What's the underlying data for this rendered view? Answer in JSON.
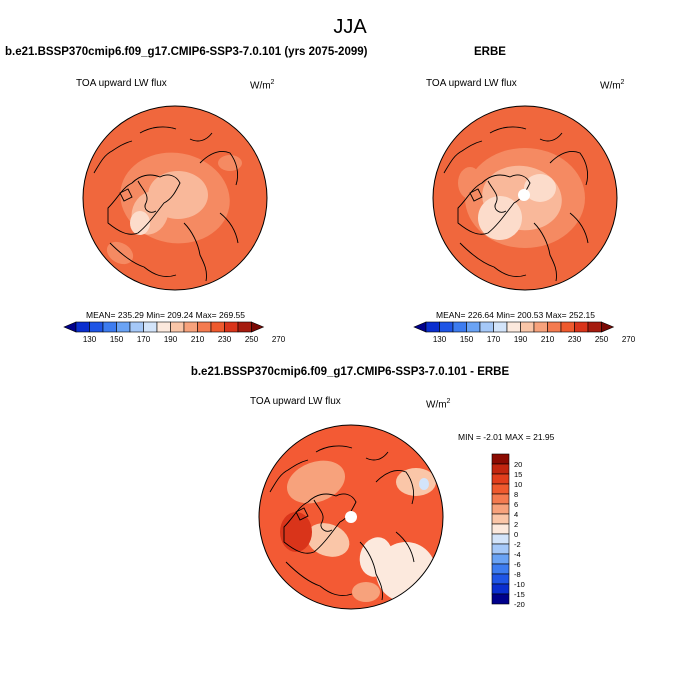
{
  "page_title": "JJA",
  "colors": {
    "abs_scale": [
      "#00008b",
      "#0a2ecf",
      "#1f55e6",
      "#3d7cf0",
      "#6aa3f5",
      "#a5c8f8",
      "#d3e4fa",
      "#fce9dd",
      "#fac6a8",
      "#f7a27c",
      "#f47b50",
      "#ef5a2e",
      "#d9341a",
      "#a51b0e",
      "#7a0a05"
    ],
    "diff_scale": [
      "#00008b",
      "#0a2ecf",
      "#1f55e6",
      "#3d7cf0",
      "#6aa3f5",
      "#a5c8f8",
      "#d3e4fa",
      "#fce9dd",
      "#fac6a8",
      "#f7a27c",
      "#f47b50",
      "#ef5a2e",
      "#e23e1c",
      "#c2260f",
      "#8b0b02"
    ],
    "map_base": "#f0673d",
    "map_mid": "#f58a62",
    "map_light": "#f9b89a",
    "map_pale": "#fcdccb"
  },
  "chart_data": [
    {
      "type": "heatmap",
      "projection": "north-polar-stereographic",
      "title": "b.e21.BSSP370cmip6.f09_g17.CMIP6-SSP3-7.0.101 (yrs 2075-2099)",
      "variable": "TOA upward LW flux",
      "units": "W/m",
      "units_exp": "2",
      "stats_text": "MEAN= 235.29  Min= 209.24  Max= 269.55",
      "stats": {
        "mean": 235.29,
        "min": 209.24,
        "max": 269.55
      },
      "colorbar_ticks": [
        "130",
        "150",
        "170",
        "190",
        "210",
        "230",
        "250",
        "270"
      ]
    },
    {
      "type": "heatmap",
      "projection": "north-polar-stereographic",
      "title": "ERBE",
      "variable": "TOA upward LW flux",
      "units": "W/m",
      "units_exp": "2",
      "stats_text": "MEAN= 226.64  Min= 200.53  Max= 252.15",
      "stats": {
        "mean": 226.64,
        "min": 200.53,
        "max": 252.15
      },
      "colorbar_ticks": [
        "130",
        "150",
        "170",
        "190",
        "210",
        "230",
        "250",
        "270"
      ]
    },
    {
      "type": "heatmap",
      "projection": "north-polar-stereographic",
      "title": "b.e21.BSSP370cmip6.f09_g17.CMIP6-SSP3-7.0.101 - ERBE",
      "variable": "TOA upward LW flux",
      "units": "W/m",
      "units_exp": "2",
      "stats_text": "MIN = -2.01 MAX =  21.95",
      "stats": {
        "min": -2.01,
        "max": 21.95
      },
      "colorbar_ticks": [
        "20",
        "15",
        "10",
        "8",
        "6",
        "4",
        "2",
        "0",
        "-2",
        "-4",
        "-6",
        "-8",
        "-10",
        "-15",
        "-20"
      ]
    }
  ]
}
